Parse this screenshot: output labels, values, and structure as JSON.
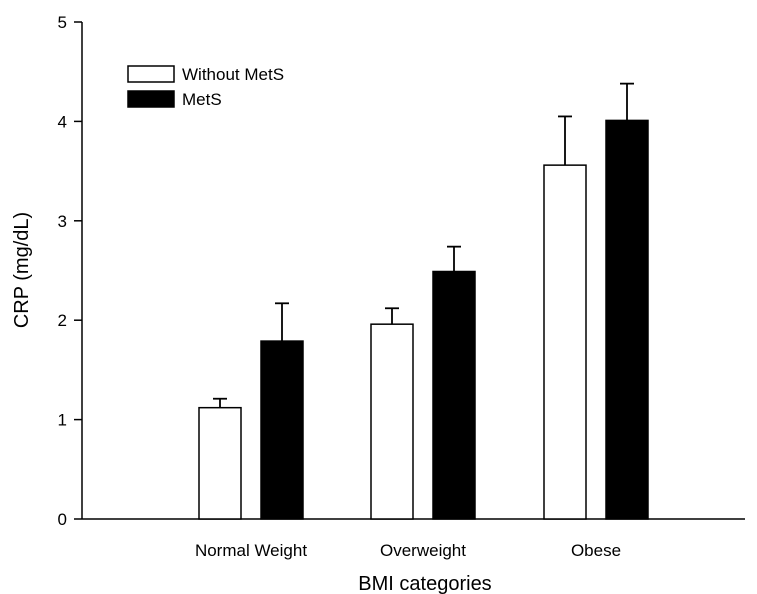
{
  "chart_data": {
    "type": "bar",
    "title": "",
    "xlabel": "BMI categories",
    "ylabel": "CRP (mg/dL)",
    "ylim": [
      0,
      5
    ],
    "yticks": [
      0,
      1,
      2,
      3,
      4,
      5
    ],
    "categories": [
      "Normal Weight",
      "Overweight",
      "Obese"
    ],
    "series": [
      {
        "name": "Without MetS",
        "values": [
          1.12,
          1.96,
          3.56
        ],
        "errors": [
          0.09,
          0.16,
          0.49
        ],
        "fill": "#ffffff"
      },
      {
        "name": "MetS",
        "values": [
          1.79,
          2.49,
          4.01
        ],
        "errors": [
          0.38,
          0.25,
          0.37
        ],
        "fill": "#000000"
      }
    ],
    "error_bars": "upper",
    "legend_position": "top-left",
    "grid": false,
    "colors": {
      "axis": "#000000",
      "bar_stroke": "#000000"
    }
  }
}
